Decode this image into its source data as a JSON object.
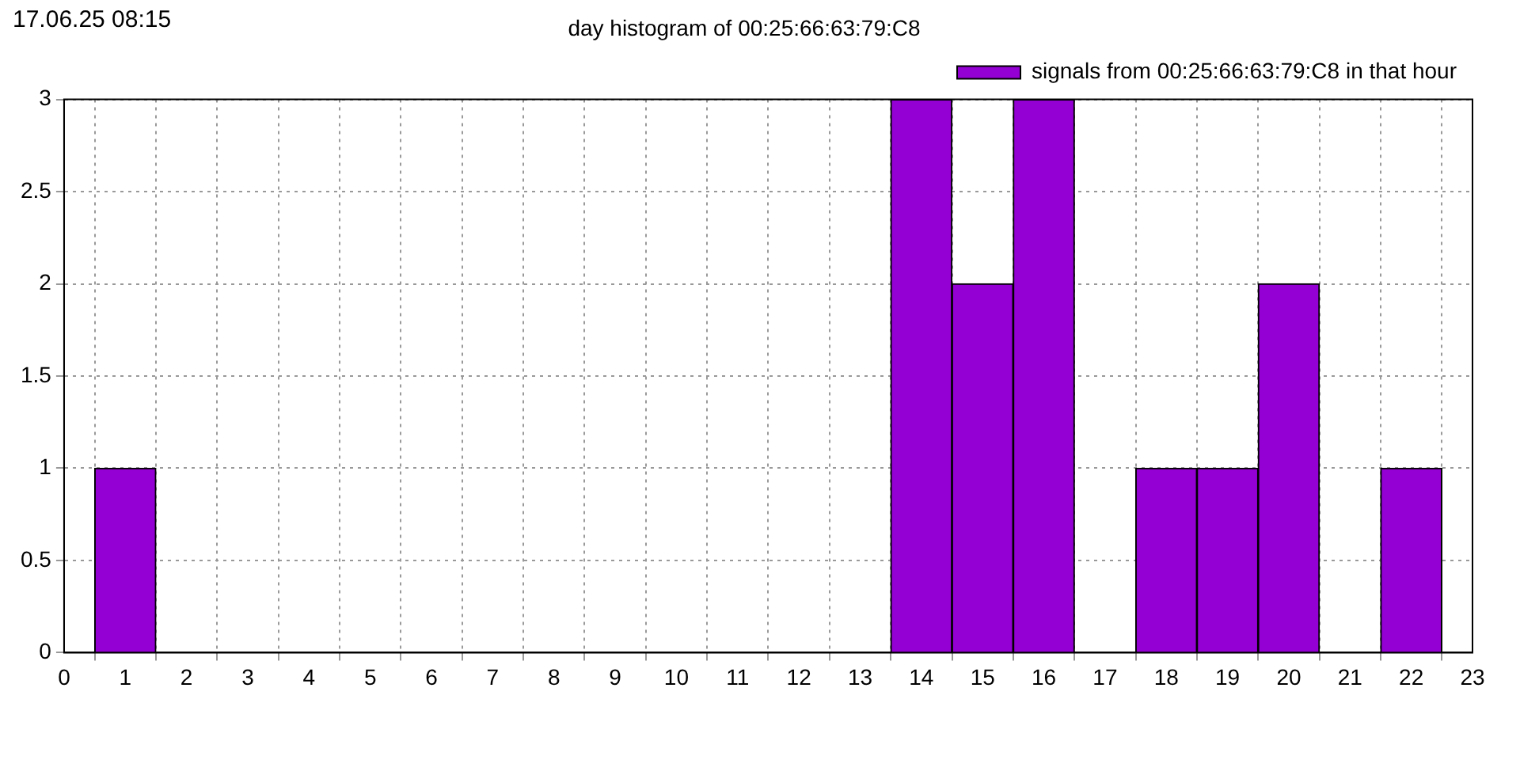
{
  "chart_data": {
    "type": "histogram",
    "title": "day histogram of 00:25:66:63:79:C8",
    "annotations": [
      "17.06.25 08:15"
    ],
    "bins": [
      0.5,
      1.5,
      2.5,
      3.5,
      4.5,
      5.5,
      6.5,
      7.5,
      8.5,
      9.5,
      10.5,
      11.5,
      12.5,
      13.5,
      14.5,
      15.5,
      16.5,
      17.5,
      18.5,
      19.5,
      20.5,
      21.5,
      22.5
    ],
    "series": [
      {
        "name": "signals from 00:25:66:63:79:C8 in that hour",
        "color": "#9400d3",
        "values": [
          1,
          0,
          0,
          0,
          0,
          0,
          0,
          0,
          0,
          0,
          0,
          0,
          0,
          3,
          2,
          3,
          0,
          1,
          1,
          2,
          0,
          1
        ]
      }
    ],
    "xlim": [
      0,
      23
    ],
    "xticks": [
      0,
      1,
      2,
      3,
      4,
      5,
      6,
      7,
      8,
      9,
      10,
      11,
      12,
      13,
      14,
      15,
      16,
      17,
      18,
      19,
      20,
      21,
      22,
      23
    ],
    "ylim": [
      0,
      3
    ],
    "yticks": [
      0,
      0.5,
      1,
      1.5,
      2,
      2.5,
      3
    ],
    "grid": true,
    "legend": "top right"
  }
}
